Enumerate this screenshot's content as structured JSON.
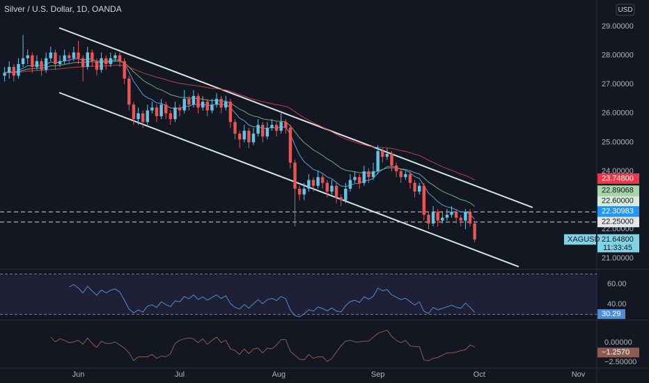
{
  "header": {
    "title": "Silver / U.S. Dollar, 1D, OANDA",
    "currency": "USD"
  },
  "chart_data": {
    "type": "candlestick",
    "ohlc": [
      [
        27.3,
        27.6,
        27.1,
        27.4
      ],
      [
        27.4,
        27.8,
        27.2,
        27.6
      ],
      [
        27.6,
        27.7,
        27.1,
        27.3
      ],
      [
        27.3,
        27.9,
        27.2,
        27.7
      ],
      [
        27.7,
        28.7,
        27.6,
        27.9
      ],
      [
        27.9,
        28.2,
        27.7,
        28.0
      ],
      [
        28.0,
        28.1,
        27.4,
        27.6
      ],
      [
        27.6,
        28.0,
        27.5,
        27.8
      ],
      [
        27.8,
        27.9,
        27.3,
        27.5
      ],
      [
        27.5,
        28.1,
        27.4,
        27.9
      ],
      [
        27.9,
        28.3,
        27.8,
        28.1
      ],
      [
        28.1,
        28.2,
        27.5,
        27.7
      ],
      [
        27.7,
        28.0,
        27.6,
        27.8
      ],
      [
        27.8,
        28.2,
        27.7,
        28.0
      ],
      [
        28.0,
        28.1,
        27.7,
        27.9
      ],
      [
        27.9,
        28.3,
        27.8,
        28.1
      ],
      [
        28.1,
        28.5,
        27.7,
        27.9
      ],
      [
        27.9,
        28.0,
        27.1,
        27.6
      ],
      [
        27.6,
        28.3,
        27.5,
        28.1
      ],
      [
        28.1,
        28.2,
        27.6,
        27.8
      ],
      [
        27.8,
        27.9,
        27.3,
        27.5
      ],
      [
        27.5,
        28.1,
        27.4,
        27.9
      ],
      [
        27.9,
        28.0,
        27.5,
        27.7
      ],
      [
        27.7,
        28.1,
        27.6,
        27.9
      ],
      [
        27.9,
        28.1,
        27.8,
        28.0
      ],
      [
        28.0,
        28.1,
        27.6,
        27.8
      ],
      [
        27.8,
        27.9,
        27.0,
        27.2
      ],
      [
        27.2,
        27.3,
        26.1,
        26.3
      ],
      [
        26.3,
        26.4,
        25.6,
        25.8
      ],
      [
        25.8,
        26.2,
        25.6,
        26.0
      ],
      [
        26.0,
        26.1,
        25.5,
        25.7
      ],
      [
        25.7,
        26.3,
        25.6,
        26.1
      ],
      [
        26.1,
        26.4,
        26.0,
        26.2
      ],
      [
        26.2,
        26.3,
        25.7,
        25.9
      ],
      [
        25.9,
        26.5,
        25.8,
        26.3
      ],
      [
        26.3,
        26.4,
        25.8,
        26.0
      ],
      [
        26.0,
        26.1,
        25.6,
        25.8
      ],
      [
        25.8,
        26.4,
        25.7,
        26.2
      ],
      [
        26.2,
        26.3,
        25.9,
        26.1
      ],
      [
        26.1,
        26.8,
        26.0,
        26.5
      ],
      [
        26.5,
        26.6,
        26.1,
        26.3
      ],
      [
        26.3,
        26.8,
        26.2,
        26.6
      ],
      [
        26.6,
        26.7,
        26.0,
        26.2
      ],
      [
        26.2,
        26.6,
        26.1,
        26.4
      ],
      [
        26.4,
        26.5,
        25.9,
        26.1
      ],
      [
        26.1,
        26.5,
        26.0,
        26.3
      ],
      [
        26.3,
        26.7,
        26.2,
        26.5
      ],
      [
        26.5,
        26.6,
        26.0,
        26.2
      ],
      [
        26.2,
        26.6,
        26.1,
        26.4
      ],
      [
        26.4,
        26.5,
        25.5,
        25.7
      ],
      [
        25.7,
        25.8,
        25.1,
        25.3
      ],
      [
        25.3,
        25.4,
        24.8,
        25.1
      ],
      [
        25.1,
        25.6,
        25.0,
        25.4
      ],
      [
        25.4,
        25.5,
        24.8,
        25.0
      ],
      [
        25.0,
        25.5,
        24.9,
        25.3
      ],
      [
        25.3,
        25.8,
        25.2,
        25.6
      ],
      [
        25.6,
        25.7,
        25.0,
        25.2
      ],
      [
        25.2,
        25.7,
        25.1,
        25.5
      ],
      [
        25.5,
        25.8,
        25.4,
        25.6
      ],
      [
        25.6,
        25.7,
        25.2,
        25.4
      ],
      [
        25.4,
        26.0,
        25.3,
        25.7
      ],
      [
        25.7,
        25.8,
        25.3,
        25.5
      ],
      [
        25.5,
        25.6,
        24.1,
        24.3
      ],
      [
        24.3,
        24.4,
        22.1,
        23.4
      ],
      [
        23.4,
        23.5,
        23.0,
        23.2
      ],
      [
        23.2,
        23.6,
        23.0,
        23.4
      ],
      [
        23.4,
        23.9,
        23.3,
        23.7
      ],
      [
        23.7,
        23.8,
        23.3,
        23.5
      ],
      [
        23.5,
        24.0,
        23.4,
        23.8
      ],
      [
        23.8,
        23.9,
        23.4,
        23.6
      ],
      [
        23.6,
        23.7,
        23.1,
        23.3
      ],
      [
        23.3,
        23.7,
        23.2,
        23.5
      ],
      [
        23.5,
        23.6,
        22.9,
        23.1
      ],
      [
        23.1,
        23.2,
        22.8,
        23.0
      ],
      [
        23.0,
        23.6,
        22.9,
        23.4
      ],
      [
        23.4,
        23.9,
        23.3,
        23.7
      ],
      [
        23.7,
        24.0,
        23.6,
        23.8
      ],
      [
        23.8,
        23.9,
        23.4,
        23.6
      ],
      [
        23.6,
        24.2,
        23.5,
        24.0
      ],
      [
        24.0,
        24.1,
        23.6,
        23.8
      ],
      [
        23.8,
        24.3,
        23.7,
        24.0
      ],
      [
        24.0,
        24.9,
        23.9,
        24.7
      ],
      [
        24.7,
        24.8,
        24.3,
        24.5
      ],
      [
        24.5,
        24.8,
        24.4,
        24.6
      ],
      [
        24.6,
        24.7,
        24.0,
        24.2
      ],
      [
        24.2,
        24.3,
        23.8,
        24.0
      ],
      [
        24.0,
        24.1,
        23.6,
        23.8
      ],
      [
        23.8,
        24.0,
        23.7,
        23.9
      ],
      [
        23.9,
        24.0,
        23.4,
        23.6
      ],
      [
        23.6,
        23.7,
        23.1,
        23.3
      ],
      [
        23.3,
        23.6,
        23.2,
        23.5
      ],
      [
        23.5,
        23.6,
        22.3,
        22.5
      ],
      [
        22.5,
        22.6,
        22.0,
        22.2
      ],
      [
        22.2,
        22.8,
        22.1,
        22.6
      ],
      [
        22.6,
        22.7,
        22.1,
        22.3
      ],
      [
        22.3,
        22.6,
        22.2,
        22.4
      ],
      [
        22.4,
        22.7,
        22.3,
        22.5
      ],
      [
        22.5,
        22.8,
        22.4,
        22.6
      ],
      [
        22.6,
        22.7,
        22.2,
        22.4
      ],
      [
        22.4,
        22.5,
        22.1,
        22.3
      ],
      [
        22.3,
        22.7,
        22.0,
        22.6
      ],
      [
        22.6,
        22.7,
        22.1,
        22.2
      ],
      [
        22.2,
        22.3,
        21.55,
        21.648
      ]
    ],
    "up_color": "#67c3e6",
    "down_color": "#ef5350",
    "ylim": [
      20.66,
      29.91
    ],
    "yticks": [
      {
        "value": 29,
        "label": "29.00000"
      },
      {
        "value": 28,
        "label": "28.00000"
      },
      {
        "value": 27,
        "label": "27.00000"
      },
      {
        "value": 26,
        "label": "26.00000"
      },
      {
        "value": 25,
        "label": "25.00000"
      },
      {
        "value": 24,
        "label": "24.00000"
      },
      {
        "value": 22,
        "label": "22.00000"
      },
      {
        "value": 21,
        "label": "21.00000"
      }
    ],
    "xlim": [
      -1,
      128.5
    ],
    "xticks": [
      {
        "value": 16,
        "label": "Jun"
      },
      {
        "value": 38,
        "label": "Jul"
      },
      {
        "value": 59.5,
        "label": "Aug"
      },
      {
        "value": 81,
        "label": "Sep"
      },
      {
        "value": 103,
        "label": "Oct"
      },
      {
        "value": 124.5,
        "label": "Nov"
      }
    ],
    "horizontal_lines": [
      22.6,
      22.25
    ],
    "price_tags": [
      {
        "value": 23.748,
        "label": "23.74800",
        "color": "#f23645"
      },
      {
        "value": 22.89068,
        "label": "22.89068",
        "color": "#a5d6a7"
      },
      {
        "value": 22.6,
        "label": "22.60000",
        "color": "#d7ecd9"
      },
      {
        "value": 22.30983,
        "label": "22.30983",
        "color": "#2196f3"
      },
      {
        "value": 22.25,
        "label": "22.25000",
        "color": "#e6e6e6"
      }
    ],
    "last_price": {
      "symbol": "XAGUSD",
      "value": 21.648,
      "label": "21.64800",
      "countdown": "11:33:45",
      "color": "#7fd3e6"
    },
    "rsi": {
      "ylim": [
        25.5,
        73.8
      ],
      "yticks": [
        {
          "value": 60,
          "label": "60.00"
        },
        {
          "value": 40,
          "label": "40.00"
        }
      ],
      "bands": [
        70,
        30
      ],
      "last": {
        "value": 30.29,
        "label": "30.29"
      },
      "color": "#4f8ed6"
    },
    "momentum": {
      "ylim": [
        -3.1,
        2.76
      ],
      "yticks": [
        {
          "value": 0,
          "label": "0.00000"
        },
        {
          "value": -2.5,
          "label": "−2.50000"
        }
      ],
      "last": {
        "value": -1.257,
        "label": "−1.2570"
      },
      "color": "#8d5b4f"
    }
  }
}
